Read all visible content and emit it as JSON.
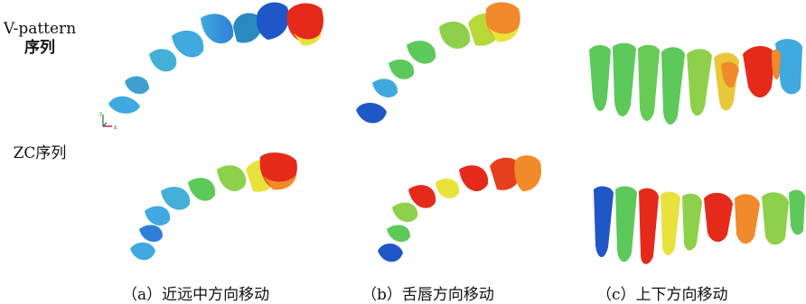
{
  "row_labels": {
    "v_pattern_line1": "V-pattern",
    "v_pattern_line2": "序列",
    "zc": "ZC序列"
  },
  "captions": {
    "a": "（a）近远中方向移动",
    "b": "（b）舌唇方向移动",
    "c": "（c）上下方向移动"
  },
  "axis_labels": {
    "y": "y",
    "x": "x"
  },
  "colors": {
    "blue": "#1f56c8",
    "cyan": "#3fa9e0",
    "green": "#5cc95a",
    "yellow": "#e8e23c",
    "orange": "#f08a2a",
    "red": "#e52a1a"
  }
}
